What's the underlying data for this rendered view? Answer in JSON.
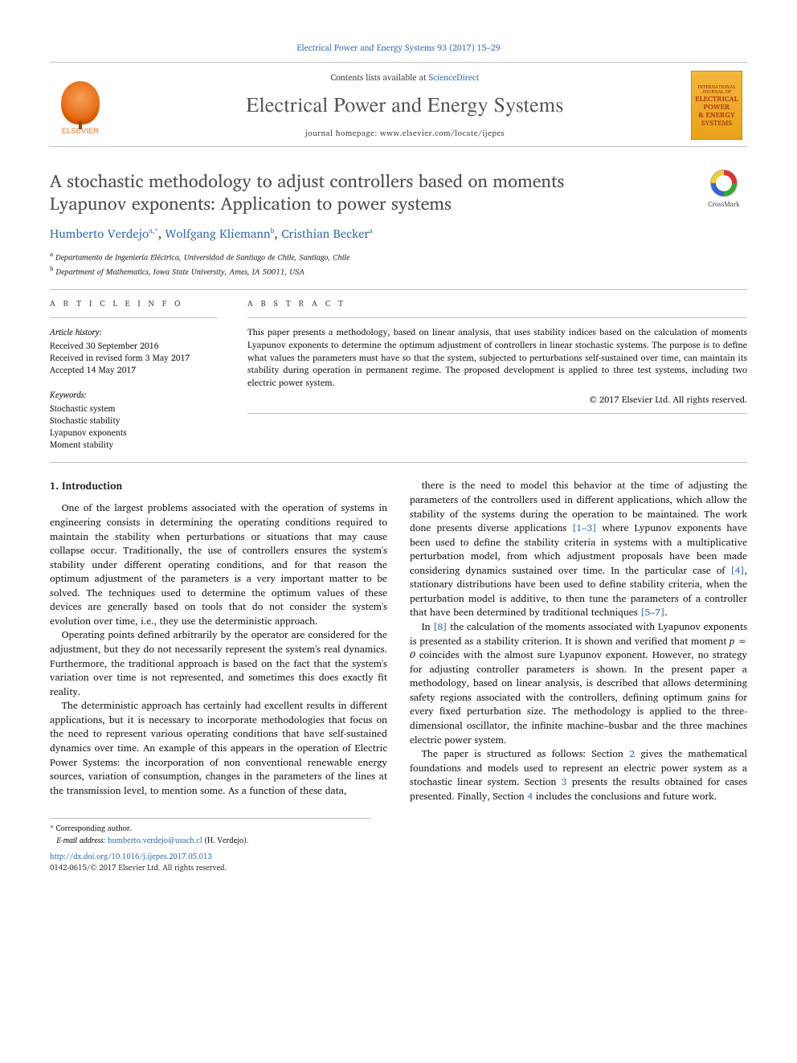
{
  "citation": "Electrical Power and Energy Systems 93 (2017) 15–29",
  "masthead": {
    "publisher_label": "ELSEVIER",
    "contents_prefix": "Contents lists available at ",
    "contents_link": "ScienceDirect",
    "journal": "Electrical Power and Energy Systems",
    "homepage_prefix": "journal homepage: ",
    "homepage": "www.elsevier.com/locate/ijepes",
    "cover_text_1": "INTERNATIONAL JOURNAL OF",
    "cover_text_2": "ELECTRICAL POWER",
    "cover_text_3": "& ENERGY",
    "cover_text_4": "SYSTEMS"
  },
  "title": "A stochastic methodology to adjust controllers based on moments Lyapunov exponents: Application to power systems",
  "crossmark_label": "CrossMark",
  "authors": [
    {
      "name": "Humberto Verdejo",
      "aff": "a,",
      "mark": "*"
    },
    {
      "name": "Wolfgang Kliemann",
      "aff": "b"
    },
    {
      "name": "Cristhian Becker",
      "aff": "a"
    }
  ],
  "affiliations": [
    {
      "sup": "a",
      "text": "Departamento de Ingeniería Eléctrica, Universidad de Santiago de Chile, Santiago, Chile"
    },
    {
      "sup": "b",
      "text": "Department of Mathematics, Iowa State University, Ames, IA 50011, USA"
    }
  ],
  "article_info": {
    "label": "A R T I C L E   I N F O",
    "history_head": "Article history:",
    "history": [
      "Received 30 September 2016",
      "Received in revised form 3 May 2017",
      "Accepted 14 May 2017"
    ],
    "keywords_head": "Keywords:",
    "keywords": [
      "Stochastic system",
      "Stochastic stability",
      "Lyapunov exponents",
      "Moment stability"
    ]
  },
  "abstract": {
    "label": "A B S T R A C T",
    "text": "This paper presents a methodology, based on linear analysis, that uses stability indices based on the calculation of moments Lyapunov exponents to determine the optimum adjustment of controllers in linear stochastic systems. The purpose is to define what values the parameters must have so that the system, subjected to perturbations self-sustained over time, can maintain its stability during operation in permanent regime. The proposed development is applied to three test systems, including two electric power system.",
    "copyright": "© 2017 Elsevier Ltd. All rights reserved."
  },
  "section": {
    "heading": "1. Introduction",
    "p1": "One of the largest problems associated with the operation of systems in engineering consists in determining the operating conditions required to maintain the stability when perturbations or situations that may cause collapse occur. Traditionally, the use of controllers ensures the system's stability under different operating conditions, and for that reason the optimum adjustment of the parameters is a very important matter to be solved. The techniques used to determine the optimum values of these devices are generally based on tools that do not consider the system's evolution over time, i.e., they use the deterministic approach.",
    "p2": "Operating points defined arbitrarily by the operator are considered for the adjustment, but they do not necessarily represent the system's real dynamics. Furthermore, the traditional approach is based on the fact that the system's variation over time is not represented, and sometimes this does exactly fit reality.",
    "p3": "The deterministic approach has certainly had excellent results in different applications, but it is necessary to incorporate methodologies that focus on the need to represent various operating conditions that have self-sustained dynamics over time. An example of this appears in the operation of Electric Power Systems: the incorporation of non conventional renewable energy sources, variation of consumption, changes in the parameters of the lines at the transmission level, to mention some. As a function of these data,",
    "p4a": "there is the need to model this behavior at the time of adjusting the parameters of the controllers used in different applications, which allow the stability of the systems during the operation to be maintained. The work done presents diverse applications ",
    "p4r1": "[1–3]",
    "p4b": " where Lypunov exponents have been used to define the stability criteria in systems with a multiplicative perturbation model, from which adjustment proposals have been made considering dynamics sustained over time. In the particular case of ",
    "p4r2": "[4]",
    "p4c": ", stationary distributions have been used to define stability criteria, when the perturbation model is additive, to then tune the parameters of a controller that have been determined by traditional techniques ",
    "p4r3": "[5–7]",
    "p4d": ".",
    "p5a": "In ",
    "p5r1": "[8]",
    "p5b": " the calculation of the moments associated with Lyapunov exponents is presented as a stability criterion. It is shown and verified that moment ",
    "p5eq": "p = 0",
    "p5c": " coincides with the almost sure Lyapunov exponent. However, no strategy for adjusting controller parameters is shown. In the present paper a methodology, based on linear analysis, is described that allows determining safety regions associated with the controllers, defining optimum gains for every fixed perturbation size. The methodology is applied to the three-dimensional oscillator, the infinite machine–busbar and the three machines electric power system.",
    "p6a": "The paper is structured as follows: Section ",
    "p6r1": "2",
    "p6b": " gives the mathematical foundations and models used to represent an electric power system as a stochastic linear system. Section ",
    "p6r2": "3",
    "p6c": " presents the results obtained for cases presented. Finally, Section ",
    "p6r3": "4",
    "p6d": " includes the conclusions and future work."
  },
  "footnotes": {
    "corr_marker": "*",
    "corr": "Corresponding author.",
    "email_label": "E-mail address:",
    "email": "humberto.verdejo@usach.cl",
    "email_name": "(H. Verdejo).",
    "doi": "http://dx.doi.org/10.1016/j.ijepes.2017.05.013",
    "issn_line": "0142-0615/© 2017 Elsevier Ltd. All rights reserved."
  },
  "colors": {
    "link": "#3a6fb7",
    "accent_orange": "#e9711c",
    "title_gray": "#4f4f4f",
    "rule": "#bfbfbf"
  }
}
